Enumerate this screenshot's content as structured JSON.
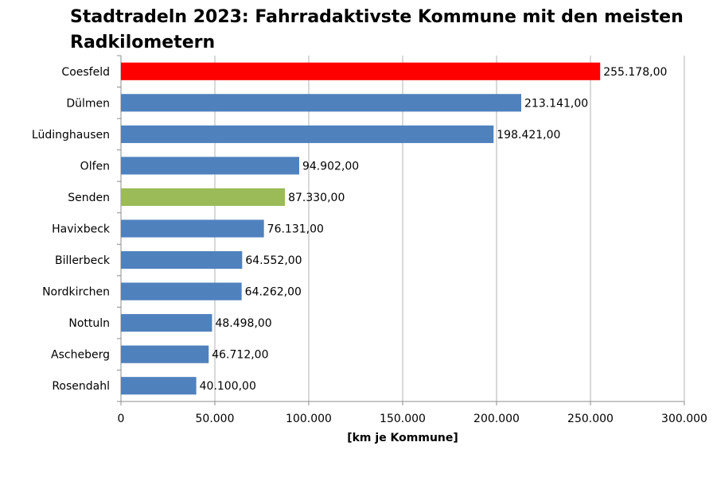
{
  "chart_data": {
    "type": "bar",
    "orientation": "horizontal",
    "title": "Stadtradeln 2023: Fahrradaktivste Kommune mit den meisten Radkilometern",
    "xlabel": "[km je Kommune]",
    "ylabel": "",
    "xlim": [
      0,
      300000
    ],
    "xticks": [
      0,
      50000,
      100000,
      150000,
      200000,
      250000,
      300000
    ],
    "xtick_labels": [
      "0",
      "50.000",
      "100.000",
      "150.000",
      "200.000",
      "250.000",
      "300.000"
    ],
    "grid": "vertical",
    "categories": [
      "Coesfeld",
      "Dülmen",
      "Lüdinghausen",
      "Olfen",
      "Senden",
      "Havixbeck",
      "Billerbeck",
      "Nordkirchen",
      "Nottuln",
      "Ascheberg",
      "Rosendahl"
    ],
    "values": [
      255178,
      213141,
      198421,
      94902,
      87330,
      76131,
      64552,
      64262,
      48498,
      46712,
      40100
    ],
    "data_labels": [
      "255.178,00",
      "213.141,00",
      "198.421,00",
      "94.902,00",
      "87.330,00",
      "76.131,00",
      "64.552,00",
      "64.262,00",
      "48.498,00",
      "46.712,00",
      "40.100,00"
    ],
    "bar_colors": [
      "#ff0000",
      "#4f81bd",
      "#4f81bd",
      "#4f81bd",
      "#9bbb59",
      "#4f81bd",
      "#4f81bd",
      "#4f81bd",
      "#4f81bd",
      "#4f81bd",
      "#4f81bd"
    ]
  }
}
